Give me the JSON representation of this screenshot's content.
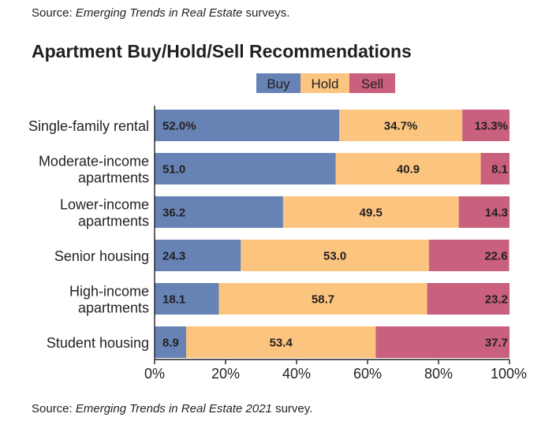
{
  "source_top": {
    "prefix": "Source: ",
    "italic": "Emerging Trends in Real Estate",
    "suffix": " surveys."
  },
  "source_bottom": {
    "prefix": "Source: ",
    "italic": "Emerging Trends in Real Estate 2021",
    "suffix": " survey."
  },
  "colors": {
    "buy": "#6783b5",
    "hold": "#fbc57f",
    "sell": "#c8607e",
    "axis": "#231f20"
  },
  "chart_data": {
    "type": "bar",
    "orientation": "horizontal",
    "stacked": true,
    "title": "Apartment Buy/Hold/Sell Recommendations",
    "categories": [
      [
        "Single-family rental"
      ],
      [
        "Moderate-income",
        "apartments"
      ],
      [
        "Lower-income",
        "apartments"
      ],
      [
        "Senior housing"
      ],
      [
        "High-income",
        "apartments"
      ],
      [
        "Student housing"
      ]
    ],
    "series": [
      {
        "name": "Buy",
        "values": [
          52.0,
          51.0,
          36.2,
          24.3,
          18.1,
          8.9
        ],
        "labels": [
          "52.0%",
          "51.0",
          "36.2",
          "24.3",
          "18.1",
          "8.9"
        ]
      },
      {
        "name": "Hold",
        "values": [
          34.7,
          40.9,
          49.5,
          53.0,
          58.7,
          53.4
        ],
        "labels": [
          "34.7%",
          "40.9",
          "49.5",
          "53.0",
          "58.7",
          "53.4"
        ]
      },
      {
        "name": "Sell",
        "values": [
          13.3,
          8.1,
          14.3,
          22.6,
          23.2,
          37.7
        ],
        "labels": [
          "13.3%",
          "8.1",
          "14.3",
          "22.6",
          "23.2",
          "37.7"
        ]
      }
    ],
    "xlim": [
      0,
      100
    ],
    "xticks": [
      0,
      20,
      40,
      60,
      80,
      100
    ],
    "xtick_labels": [
      "0%",
      "20%",
      "40%",
      "60%",
      "80%",
      "100%"
    ],
    "legend": [
      "Buy",
      "Hold",
      "Sell"
    ],
    "legend_position": "top-right",
    "grid": false
  }
}
